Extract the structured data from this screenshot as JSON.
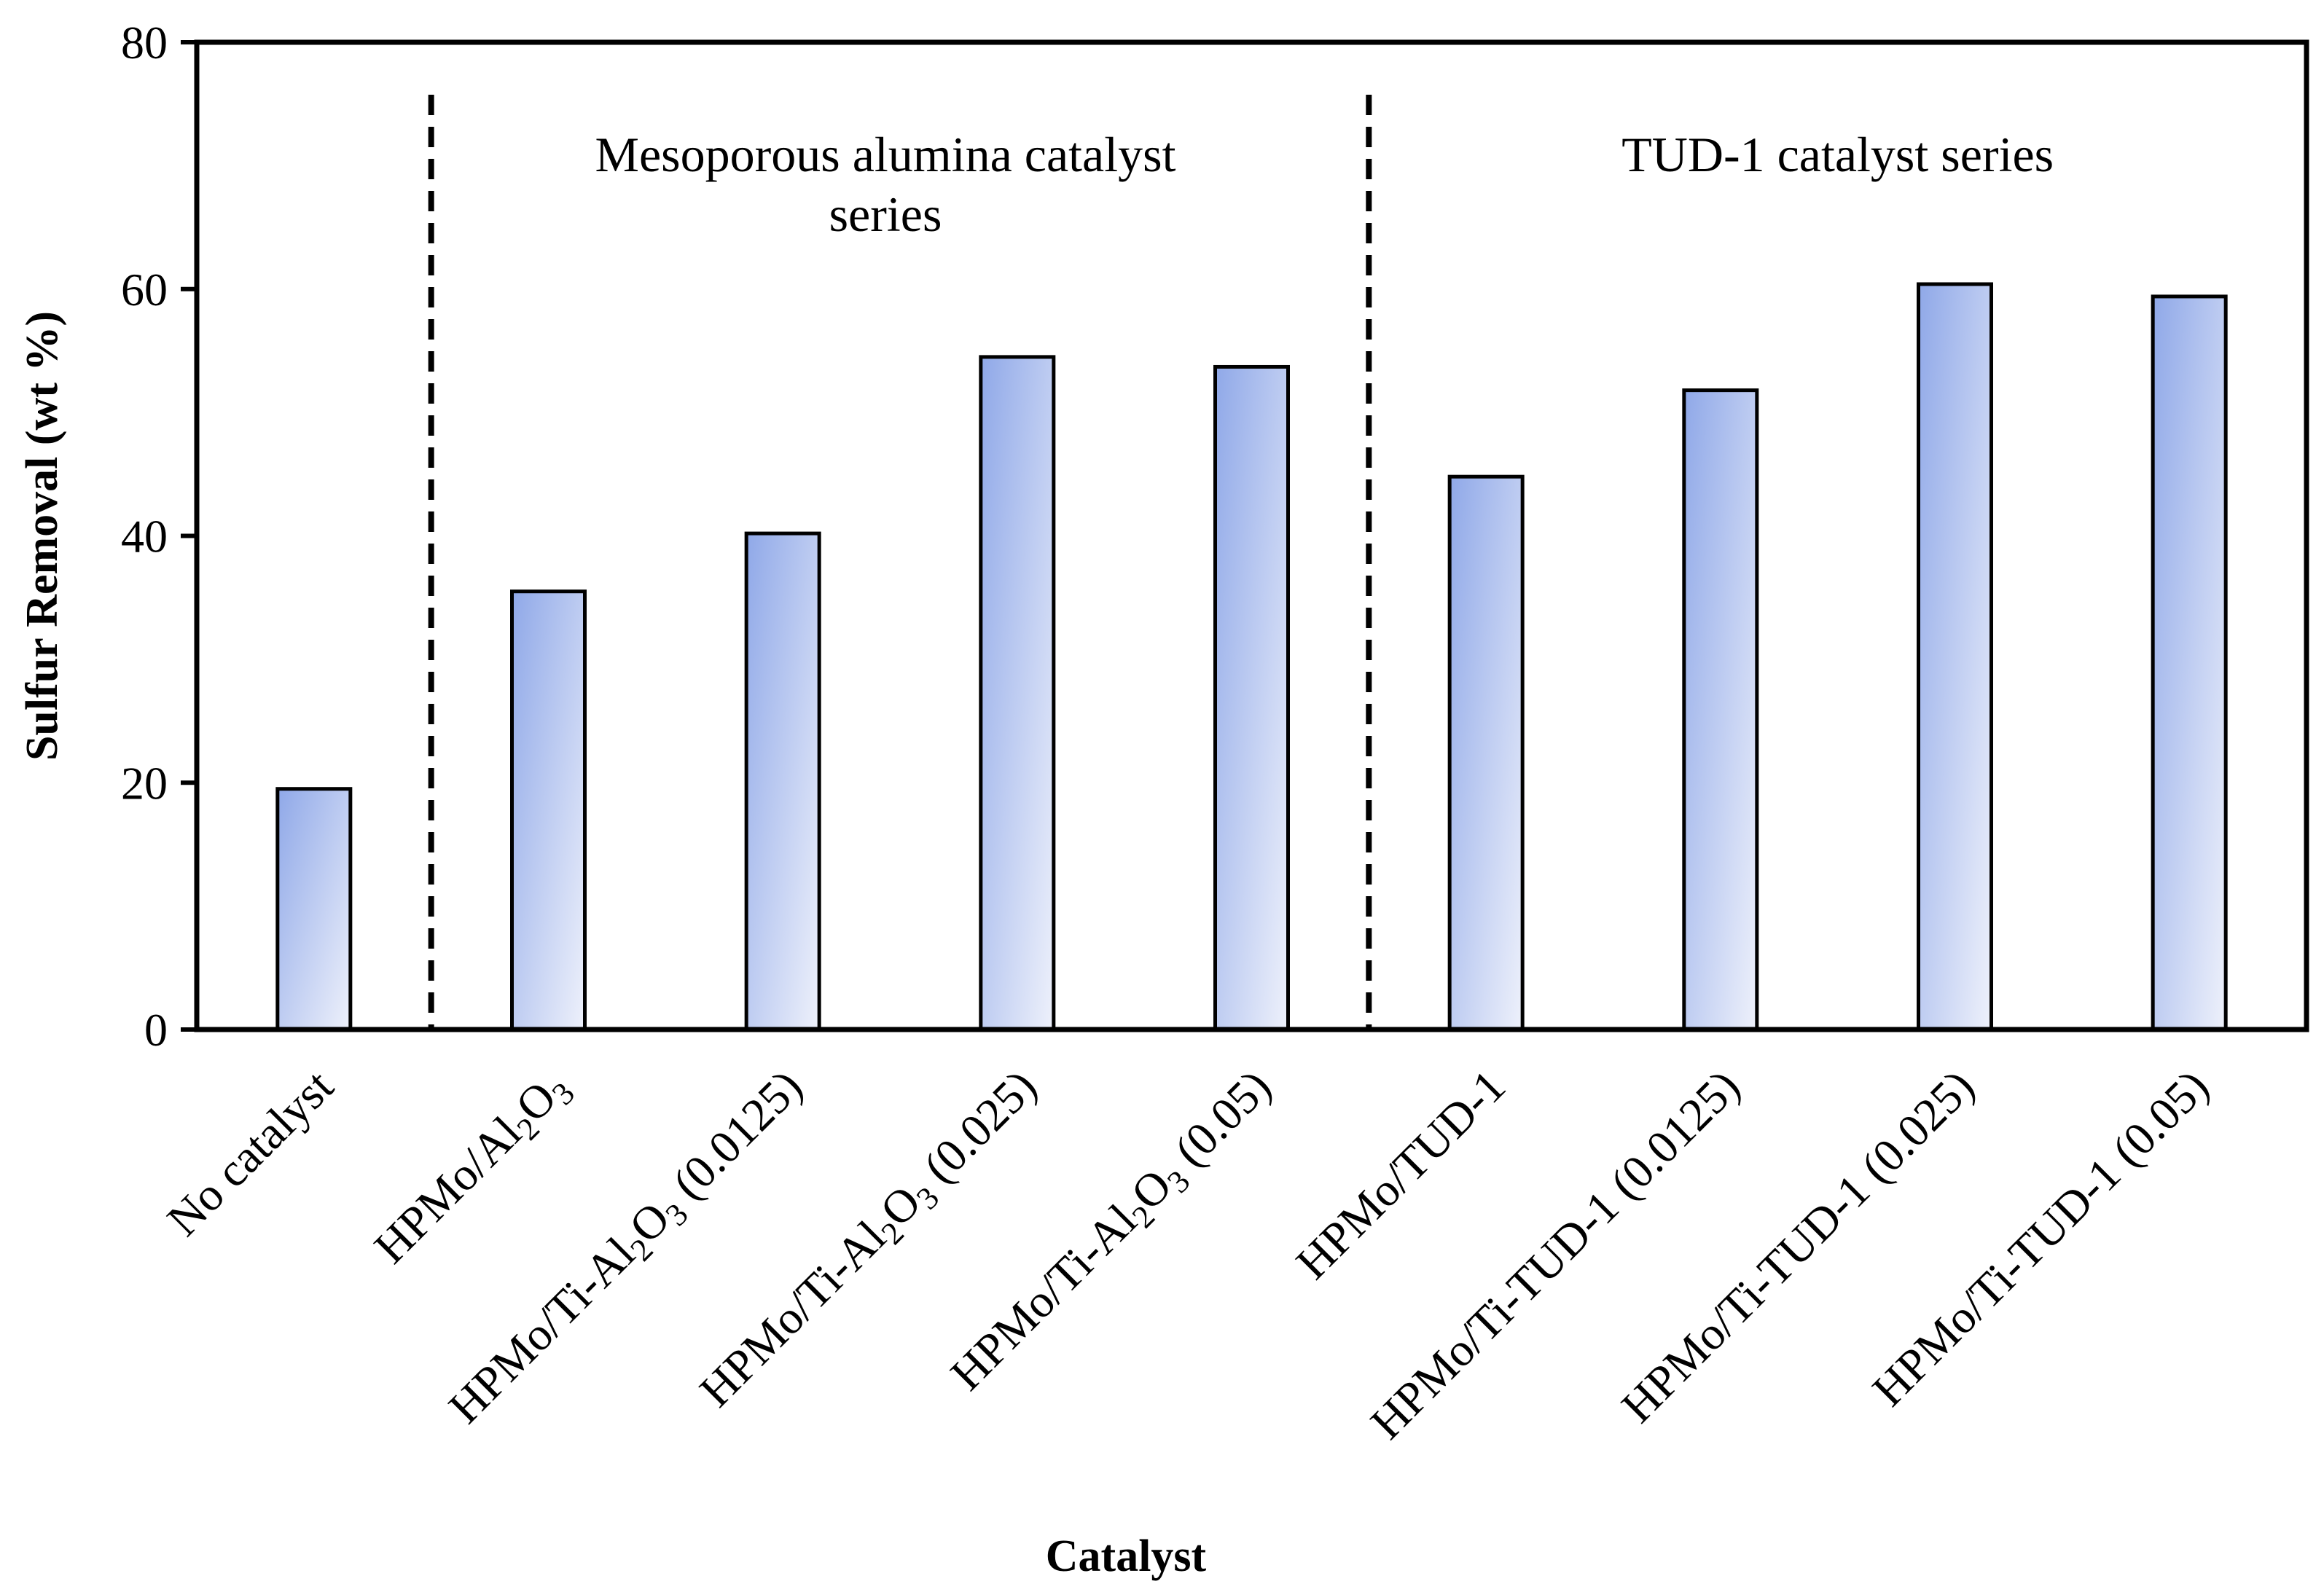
{
  "chart_data": {
    "type": "bar",
    "title": "",
    "xlabel": "Catalyst",
    "ylabel": "Sulfur Removal (wt %)",
    "ylim": [
      0,
      80
    ],
    "yticks": [
      0,
      20,
      40,
      60,
      80
    ],
    "grid": false,
    "legend": "none",
    "categories": [
      "No catalyst",
      "HPMo/Al2O3",
      "HPMo/Ti-Al2O3 (0.0125)",
      "HPMo/Ti-Al2O3 (0.025)",
      "HPMo/Ti-Al2O3 (0.05)",
      "HPMo/TUD-1",
      "HPMo/Ti-TUD-1 (0.0125)",
      "HPMo/Ti-TUD-1 (0.025)",
      "HPMo/Ti-TUD-1 (0.05)"
    ],
    "category_display": [
      {
        "parts": [
          "No catalyst"
        ]
      },
      {
        "parts": [
          "HPMo/Al",
          "2",
          "O",
          "3"
        ]
      },
      {
        "parts": [
          "HPMo/Ti-Al",
          "2",
          "O",
          "3",
          " (0.0125)"
        ]
      },
      {
        "parts": [
          "HPMo/Ti-Al",
          "2",
          "O",
          "3",
          " (0.025)"
        ]
      },
      {
        "parts": [
          "HPMo/Ti-Al",
          "2",
          "O",
          "3",
          " (0.05)"
        ]
      },
      {
        "parts": [
          "HPMo/TUD-1"
        ]
      },
      {
        "parts": [
          "HPMo/Ti-TUD-1 (0.0125)"
        ]
      },
      {
        "parts": [
          "HPMo/Ti-TUD-1 (0.025)"
        ]
      },
      {
        "parts": [
          "HPMo/Ti-TUD-1 (0.05)"
        ]
      }
    ],
    "values": [
      19.5,
      35.5,
      40.2,
      54.5,
      53.7,
      44.8,
      51.8,
      60.4,
      59.4
    ],
    "bar_color_start": "#8fa8e8",
    "bar_color_end": "#eef1fb",
    "bar_edge_color": "#000000",
    "separators_after_category": [
      0,
      4
    ],
    "annotations": [
      {
        "lines": [
          "Mesoporous alumina catalyst",
          "series"
        ],
        "center_category_span": [
          1,
          4
        ]
      },
      {
        "lines": [
          "TUD-1 catalyst series"
        ],
        "center_category_span": [
          5,
          8
        ]
      }
    ]
  }
}
